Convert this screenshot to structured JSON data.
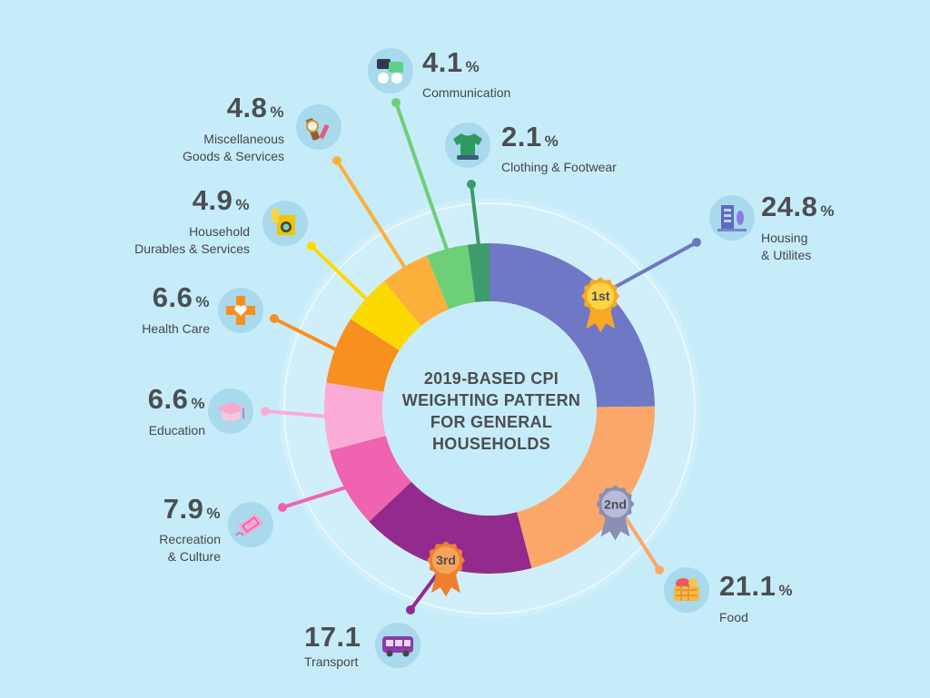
{
  "chart_data": {
    "type": "pie",
    "title": "2019-BASED CPI WEIGHTING PATTERN FOR GENERAL HOUSEHOLDS",
    "unit": "%",
    "slices": [
      {
        "label": "Housing & Utilites",
        "value": 24.8,
        "value_text": "24.8",
        "color": "#6f78c4",
        "icon": "building-icon",
        "rank": "1st"
      },
      {
        "label": "Food",
        "value": 21.1,
        "value_text": "21.1",
        "color": "#fba76a",
        "icon": "food-basket-icon",
        "rank": "2nd"
      },
      {
        "label": "Transport",
        "value": 17.1,
        "value_text": "17.1",
        "color": "#932b8f",
        "icon": "bus-icon",
        "rank": "3rd"
      },
      {
        "label": "Recreation & Culture",
        "value": 7.9,
        "value_text": "7.9",
        "color": "#f063b0",
        "icon": "ticket-icon"
      },
      {
        "label": "Education",
        "value": 6.6,
        "value_text": "6.6",
        "color": "#fbacd6",
        "icon": "graduation-cap-icon"
      },
      {
        "label": "Health Care",
        "value": 6.6,
        "value_text": "6.6",
        "color": "#f7901f",
        "icon": "medical-cross-icon"
      },
      {
        "label": "Household Durables & Services",
        "value": 4.9,
        "value_text": "4.9",
        "color": "#fcd900",
        "icon": "washing-machine-icon"
      },
      {
        "label": "Miscellaneous Goods & Services",
        "value": 4.8,
        "value_text": "4.8",
        "color": "#fbb03b",
        "icon": "watch-icon"
      },
      {
        "label": "Communication",
        "value": 4.1,
        "value_text": "4.1",
        "color": "#6dcf77",
        "icon": "chat-bubbles-icon"
      },
      {
        "label": "Clothing & Footwear",
        "value": 2.1,
        "value_text": "2.1",
        "color": "#3e9b6b",
        "icon": "tshirt-icon"
      }
    ],
    "badges": {
      "first": "1st",
      "second": "2nd",
      "third": "3rd"
    },
    "percent_sign": "%"
  },
  "labels": {
    "title_lines": [
      "2019-BASED CPI",
      "WEIGHTING PATTERN",
      "FOR GENERAL",
      "HOUSEHOLDS"
    ],
    "housing": {
      "pct": "24.8",
      "line1": "Housing",
      "line2": "& Utilites"
    },
    "food": {
      "pct": "21.1",
      "line1": "Food"
    },
    "transport": {
      "pct": "17.1",
      "line1": "Transport"
    },
    "recreation": {
      "pct": "7.9",
      "line1": "Recreation",
      "line2": "& Culture"
    },
    "education": {
      "pct": "6.6",
      "line1": "Education"
    },
    "health": {
      "pct": "6.6",
      "line1": "Health Care"
    },
    "household": {
      "pct": "4.9",
      "line1": "Household",
      "line2": "Durables & Services"
    },
    "misc": {
      "pct": "4.8",
      "line1": "Miscellaneous",
      "line2": "Goods & Services"
    },
    "communication": {
      "pct": "4.1",
      "line1": "Communication"
    },
    "clothing": {
      "pct": "2.1",
      "line1": "Clothing & Footwear"
    },
    "pct_sign": "%"
  },
  "colors": {
    "background": "#c7ecf9",
    "inner_circle": "#c7ecf9",
    "outer_ring": "#d8f2fb",
    "icon_circle": "#a8d9ec",
    "text": "#4b4e53"
  }
}
